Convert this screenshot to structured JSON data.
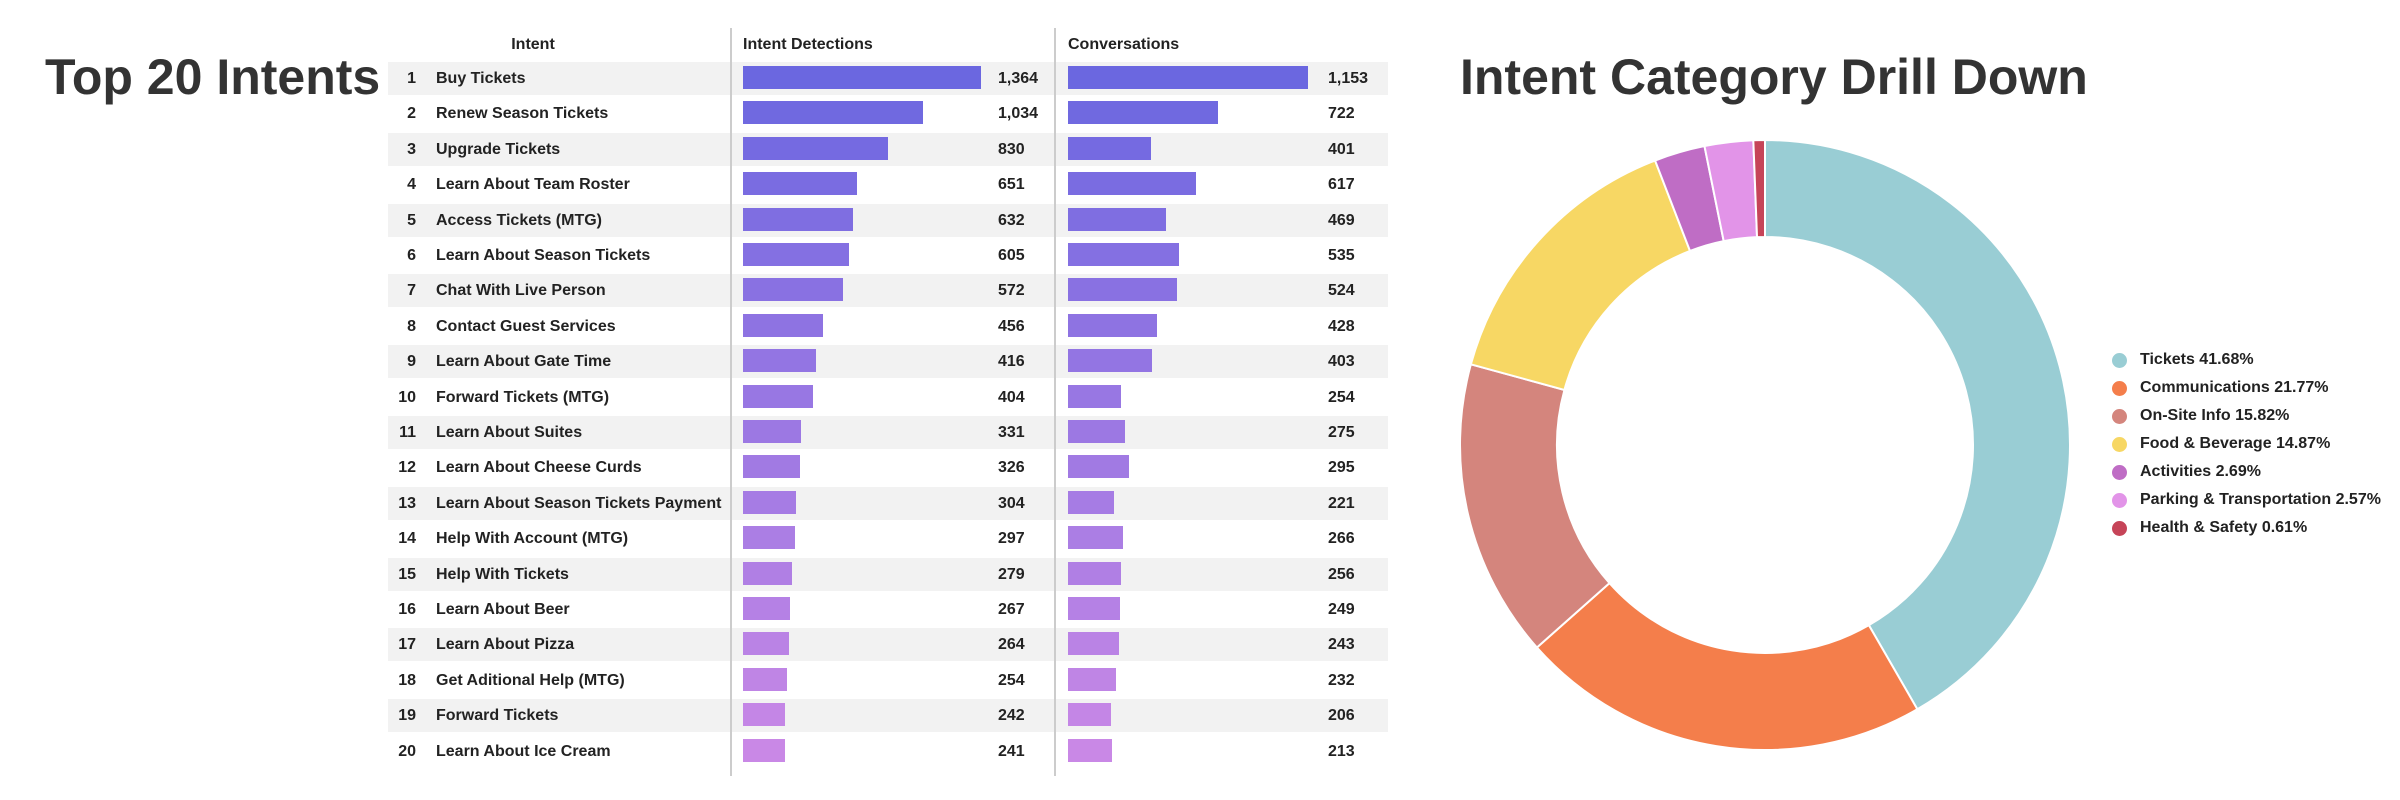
{
  "left_title": "Top 20 Intents",
  "right_title": "Intent Category Drill Down",
  "chart_data": [
    {
      "type": "table",
      "columns": [
        "Intent",
        "Intent Detections",
        "Conversations"
      ],
      "rows": [
        {
          "rank": "1",
          "intent": "Buy Tickets",
          "detections": 1364,
          "detections_label": "1,364",
          "conversations": 1153,
          "conversations_label": "1,153"
        },
        {
          "rank": "2",
          "intent": "Renew Season Tickets",
          "detections": 1034,
          "detections_label": "1,034",
          "conversations": 722,
          "conversations_label": "722"
        },
        {
          "rank": "3",
          "intent": "Upgrade Tickets",
          "detections": 830,
          "detections_label": "830",
          "conversations": 401,
          "conversations_label": "401"
        },
        {
          "rank": "4",
          "intent": "Learn About Team Roster",
          "detections": 651,
          "detections_label": "651",
          "conversations": 617,
          "conversations_label": "617"
        },
        {
          "rank": "5",
          "intent": "Access Tickets (MTG)",
          "detections": 632,
          "detections_label": "632",
          "conversations": 469,
          "conversations_label": "469"
        },
        {
          "rank": "6",
          "intent": "Learn About Season Tickets",
          "detections": 605,
          "detections_label": "605",
          "conversations": 535,
          "conversations_label": "535"
        },
        {
          "rank": "7",
          "intent": "Chat With Live Person",
          "detections": 572,
          "detections_label": "572",
          "conversations": 524,
          "conversations_label": "524"
        },
        {
          "rank": "8",
          "intent": "Contact Guest Services",
          "detections": 456,
          "detections_label": "456",
          "conversations": 428,
          "conversations_label": "428"
        },
        {
          "rank": "9",
          "intent": "Learn About Gate Time",
          "detections": 416,
          "detections_label": "416",
          "conversations": 403,
          "conversations_label": "403"
        },
        {
          "rank": "10",
          "intent": "Forward Tickets (MTG)",
          "detections": 404,
          "detections_label": "404",
          "conversations": 254,
          "conversations_label": "254"
        },
        {
          "rank": "11",
          "intent": "Learn About Suites",
          "detections": 331,
          "detections_label": "331",
          "conversations": 275,
          "conversations_label": "275"
        },
        {
          "rank": "12",
          "intent": "Learn About Cheese Curds",
          "detections": 326,
          "detections_label": "326",
          "conversations": 295,
          "conversations_label": "295"
        },
        {
          "rank": "13",
          "intent": "Learn About Season Tickets Payment",
          "detections": 304,
          "detections_label": "304",
          "conversations": 221,
          "conversations_label": "221"
        },
        {
          "rank": "14",
          "intent": "Help With Account (MTG)",
          "detections": 297,
          "detections_label": "297",
          "conversations": 266,
          "conversations_label": "266"
        },
        {
          "rank": "15",
          "intent": "Help With Tickets",
          "detections": 279,
          "detections_label": "279",
          "conversations": 256,
          "conversations_label": "256"
        },
        {
          "rank": "16",
          "intent": "Learn About Beer",
          "detections": 267,
          "detections_label": "267",
          "conversations": 249,
          "conversations_label": "249"
        },
        {
          "rank": "17",
          "intent": "Learn About Pizza",
          "detections": 264,
          "detections_label": "264",
          "conversations": 243,
          "conversations_label": "243"
        },
        {
          "rank": "18",
          "intent": "Get Aditional Help (MTG)",
          "detections": 254,
          "detections_label": "254",
          "conversations": 232,
          "conversations_label": "232"
        },
        {
          "rank": "19",
          "intent": "Forward Tickets",
          "detections": 242,
          "detections_label": "242",
          "conversations": 206,
          "conversations_label": "206"
        },
        {
          "rank": "20",
          "intent": "Learn About Ice Cream",
          "detections": 241,
          "detections_label": "241",
          "conversations": 213,
          "conversations_label": "213"
        }
      ],
      "bar_color_start": "#6b67e0",
      "bar_color_end": "#c988e6",
      "row_alt_color": "#f2f2f2"
    },
    {
      "type": "pie",
      "donut": true,
      "legend_position": "right",
      "slices": [
        {
          "label": "Tickets 41.68%",
          "value": 41.68,
          "color": "#99cdd4"
        },
        {
          "label": "Communications 21.77%",
          "value": 21.77,
          "color": "#f47e4b"
        },
        {
          "label": "On-Site Info 15.82%",
          "value": 15.82,
          "color": "#d4857d"
        },
        {
          "label": "Food & Beverage 14.87%",
          "value": 14.87,
          "color": "#f7d764"
        },
        {
          "label": "Activities 2.69%",
          "value": 2.69,
          "color": "#bf6dc5"
        },
        {
          "label": "Parking & Transportation 2.57%",
          "value": 2.57,
          "color": "#e294e8"
        },
        {
          "label": "Health & Safety 0.61%",
          "value": 0.61,
          "color": "#c64458"
        }
      ]
    }
  ]
}
